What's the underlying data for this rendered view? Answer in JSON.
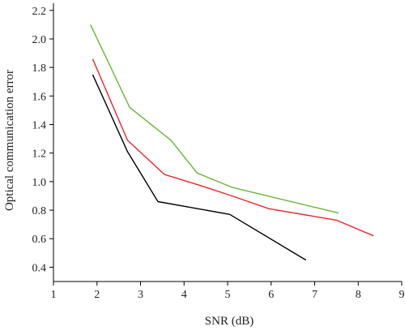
{
  "chart_data": {
    "type": "line",
    "title": "",
    "xlabel": "SNR (dB)",
    "ylabel": "Optical communication error",
    "xlim": [
      1,
      9
    ],
    "ylim": [
      0.3,
      2.25
    ],
    "xticks": [
      "1",
      "2",
      "3",
      "4",
      "5",
      "6",
      "7",
      "8",
      "9"
    ],
    "yticks": [
      "0.4",
      "0.6",
      "0.8",
      "1.0",
      "1.2",
      "1.4",
      "1.6",
      "1.8",
      "2.0",
      "2.2"
    ],
    "grid": false,
    "legend": "none",
    "series": [
      {
        "color": "#000000",
        "x": [
          1.9,
          2.7,
          3.4,
          5.05,
          6.8
        ],
        "y": [
          1.75,
          1.21,
          0.86,
          0.77,
          0.45
        ]
      },
      {
        "color": "#e8262b",
        "x": [
          1.9,
          2.7,
          3.55,
          4.3,
          5.1,
          5.95,
          7.5,
          8.35
        ],
        "y": [
          1.86,
          1.29,
          1.05,
          0.98,
          0.9,
          0.81,
          0.73,
          0.62
        ]
      },
      {
        "color": "#6ab535",
        "x": [
          1.85,
          2.75,
          3.7,
          4.3,
          5.1,
          7.55
        ],
        "y": [
          2.1,
          1.52,
          1.29,
          1.06,
          0.96,
          0.78
        ]
      }
    ]
  }
}
